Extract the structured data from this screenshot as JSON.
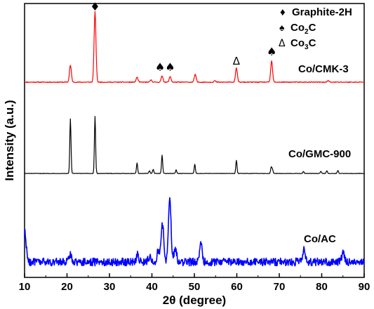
{
  "chart_data": {
    "type": "line",
    "xlabel": "2θ (degree)",
    "ylabel": "Intensity (a.u.)",
    "xlim": [
      10,
      90
    ],
    "xticks": [
      10,
      20,
      30,
      40,
      50,
      60,
      70,
      80,
      90
    ],
    "xtick_labels": [
      "10",
      "20",
      "30",
      "40",
      "50",
      "60",
      "70",
      "80",
      "90"
    ],
    "yticks": "none",
    "grid": false,
    "legend": {
      "placement": "top-right",
      "entries": [
        {
          "symbol": "♦",
          "label": "Graphite-2H"
        },
        {
          "symbol": "♠",
          "label": "Co",
          "sub": "2",
          "tail": "C"
        },
        {
          "symbol": "Δ",
          "label": "Co",
          "sub": "3",
          "tail": "C"
        }
      ]
    },
    "series": [
      {
        "name": "Co/CMK-3",
        "color": "#ff0000",
        "baseline": 8,
        "noise": 0.6,
        "peaks": [
          [
            20.8,
            24
          ],
          [
            26.6,
            100
          ],
          [
            36.5,
            7
          ],
          [
            39.8,
            3
          ],
          [
            42.4,
            9
          ],
          [
            44.3,
            8
          ],
          [
            50.2,
            11
          ],
          [
            54.8,
            2
          ],
          [
            59.9,
            20
          ],
          [
            68.2,
            30
          ],
          [
            81.5,
            2
          ]
        ]
      },
      {
        "name": "Co/GMC-900",
        "color": "#000000",
        "baseline": 4,
        "noise": 0.3,
        "peaks": [
          [
            20.8,
            78
          ],
          [
            26.6,
            81
          ],
          [
            36.5,
            15
          ],
          [
            39.4,
            4
          ],
          [
            40.3,
            6
          ],
          [
            42.4,
            26
          ],
          [
            45.7,
            5
          ],
          [
            50.1,
            13
          ],
          [
            59.9,
            19
          ],
          [
            68.1,
            9
          ],
          [
            68.4,
            6
          ],
          [
            75.7,
            3
          ],
          [
            79.8,
            3
          ],
          [
            81.2,
            4
          ],
          [
            83.8,
            4
          ]
        ]
      },
      {
        "name": "Co/AC",
        "color": "#0000ff",
        "baseline": 6,
        "noise": 4,
        "peaks": [
          [
            10.1,
            30
          ],
          [
            20.8,
            8
          ],
          [
            36.6,
            7
          ],
          [
            39.4,
            5
          ],
          [
            41.5,
            12
          ],
          [
            42.5,
            38
          ],
          [
            44.2,
            68
          ],
          [
            45.5,
            14
          ],
          [
            51.5,
            20
          ],
          [
            75.8,
            14
          ],
          [
            85.0,
            9
          ]
        ]
      }
    ],
    "annotations": [
      {
        "symbol": "♦",
        "x": 26.6,
        "series": "Co/CMK-3"
      },
      {
        "symbol": "♠♠",
        "x": 43.1,
        "series": "Co/CMK-3"
      },
      {
        "symbol": "Δ",
        "x": 59.9,
        "series": "Co/CMK-3"
      },
      {
        "symbol": "♠",
        "x": 68.2,
        "series": "Co/CMK-3"
      }
    ]
  }
}
